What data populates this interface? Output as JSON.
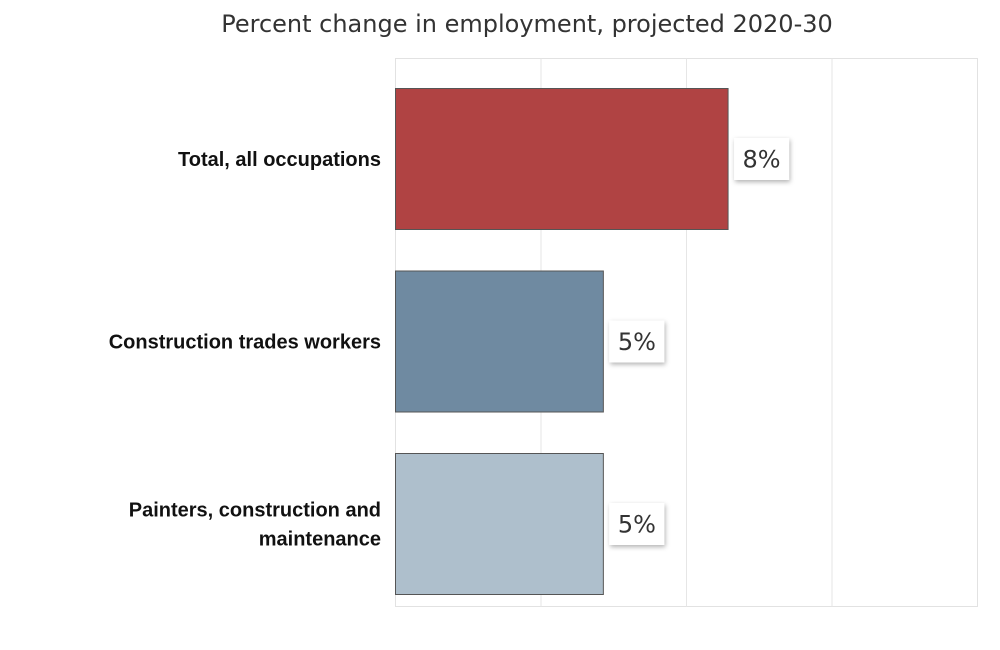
{
  "chart_data": {
    "type": "bar",
    "orientation": "horizontal",
    "title": "Percent change in employment, projected 2020-30",
    "xlabel": "",
    "ylabel": "",
    "xlim": [
      0,
      14
    ],
    "grid": true,
    "legend": "none",
    "categories": [
      "Total, all occupations",
      "Construction trades workers",
      "Painters, construction and maintenance"
    ],
    "category_lines": [
      [
        "Total, all occupations"
      ],
      [
        "Construction trades workers"
      ],
      [
        "Painters, construction and",
        "maintenance"
      ]
    ],
    "values": [
      8,
      5,
      5
    ],
    "data_labels": [
      "8%",
      "5%",
      "5%"
    ],
    "colors": [
      "#b04343",
      "#6f8aa1",
      "#aebfcc"
    ]
  }
}
